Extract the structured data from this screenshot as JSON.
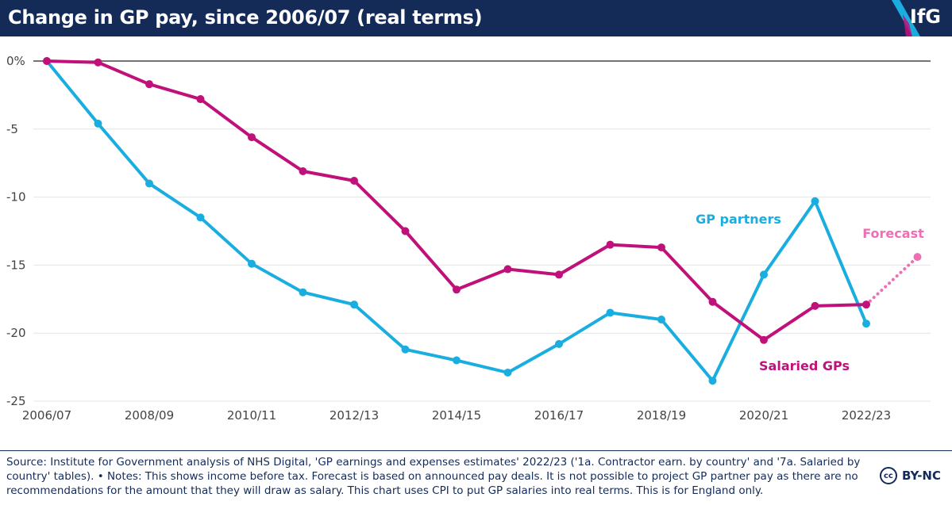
{
  "header": {
    "title": "Change in GP pay, since 2006/07 (real terms)",
    "logo": "IfG"
  },
  "colors": {
    "header_bg": "#142b58",
    "gp_partners": "#1aaee0",
    "salaried_gps": "#c0117a",
    "forecast": "#ee6fb4",
    "text_dark": "#142b58"
  },
  "chart_data": {
    "type": "line",
    "title": "Change in GP pay, since 2006/07 (real terms)",
    "x": [
      "2006/07",
      "2007/08",
      "2008/09",
      "2009/10",
      "2010/11",
      "2011/12",
      "2012/13",
      "2013/14",
      "2014/15",
      "2015/16",
      "2016/17",
      "2017/18",
      "2018/19",
      "2019/20",
      "2020/21",
      "2021/22",
      "2022/23",
      "2023/24"
    ],
    "x_tick_labels": [
      "2006/07",
      "2008/09",
      "2010/11",
      "2012/13",
      "2014/15",
      "2016/17",
      "2018/19",
      "2020/21",
      "2022/23"
    ],
    "y_tick_labels": [
      "0%",
      "-5",
      "-10",
      "-15",
      "-20",
      "-25"
    ],
    "y_ticks": [
      0,
      -5,
      -10,
      -15,
      -20,
      -25
    ],
    "ylim": [
      -25,
      0
    ],
    "grid": true,
    "series": [
      {
        "name": "GP partners",
        "values": [
          0,
          -4.6,
          -9.0,
          -11.5,
          -14.9,
          -17.0,
          -17.9,
          -21.2,
          -22.0,
          -22.9,
          -20.8,
          -18.5,
          -19.0,
          -23.5,
          -15.7,
          -10.3,
          -19.3,
          null
        ]
      },
      {
        "name": "Salaried GPs",
        "values": [
          0,
          -0.1,
          -1.7,
          -2.8,
          -5.6,
          -8.1,
          -8.8,
          -12.5,
          -16.8,
          -15.3,
          -15.7,
          -13.5,
          -13.7,
          -17.7,
          -20.5,
          -18.0,
          -17.9,
          null
        ]
      },
      {
        "name": "Forecast",
        "values": [
          null,
          null,
          null,
          null,
          null,
          null,
          null,
          null,
          null,
          null,
          null,
          null,
          null,
          null,
          null,
          null,
          -17.9,
          -14.4
        ],
        "style": "dotted"
      }
    ]
  },
  "footer": {
    "source": "Source: Institute for Government analysis of NHS Digital, 'GP earnings and expenses estimates' 2022/23 ('1a. Contractor earn. by country' and '7a. Salaried by country' tables). • Notes: This shows income before tax. Forecast is based on announced pay deals. It is not possible to project GP partner pay as there are no recommendations for the amount that they will draw as salary. This chart uses CPI to put GP salaries into real terms. This is for England only.",
    "cc_symbol": "cc",
    "license": "BY-NC"
  }
}
